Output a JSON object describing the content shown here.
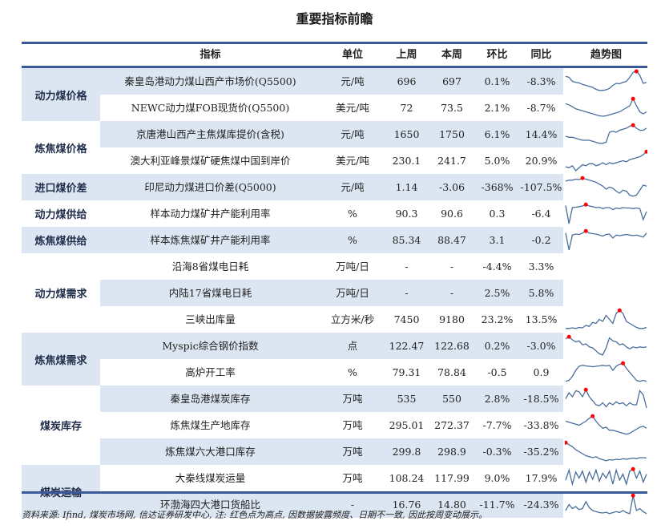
{
  "title": "重要指标前瞻",
  "colors": {
    "rule": "#3b5998",
    "shade": "#dce6f2",
    "line": "#4a6d9c",
    "peak": "#ff0000"
  },
  "headers": [
    "指标",
    "单位",
    "上周",
    "本周",
    "环比",
    "同比",
    "趋势图"
  ],
  "groups": [
    {
      "label": "动力煤价格",
      "rows": 2
    },
    {
      "label": "炼焦煤价格",
      "rows": 2
    },
    {
      "label": "进口煤价差",
      "rows": 1
    },
    {
      "label": "动力煤供给",
      "rows": 1
    },
    {
      "label": "炼焦煤供给",
      "rows": 1
    },
    {
      "label": "动力煤需求",
      "rows": 3
    },
    {
      "label": "炼焦煤需求",
      "rows": 2
    },
    {
      "label": "煤炭库存",
      "rows": 3
    },
    {
      "label": "煤炭运输",
      "rows": 2
    }
  ],
  "rows": [
    {
      "indicator": "秦皇岛港动力煤山西产市场价(Q5500)",
      "unit": "元/吨",
      "prev": "696",
      "cur": "697",
      "hb": "0.1%",
      "tb": "-8.3%",
      "trend": [
        0.75,
        0.7,
        0.5,
        0.45,
        0.42,
        0.35,
        0.3,
        0.25,
        0.2,
        0.1,
        0.05,
        0.05,
        0.08,
        0.15,
        0.3,
        0.4,
        0.38,
        0.45,
        0.5,
        0.7,
        0.95,
        1,
        0.8,
        0.4,
        0.45
      ]
    },
    {
      "indicator": "NEWC动力煤FOB现货价(Q5500)",
      "unit": "美元/吨",
      "prev": "72",
      "cur": "73.5",
      "hb": "2.1%",
      "tb": "-8.7%",
      "trend": [
        0.7,
        0.65,
        0.55,
        0.45,
        0.4,
        0.35,
        0.3,
        0.25,
        0.2,
        0.15,
        0.1,
        0.08,
        0.1,
        0.15,
        0.2,
        0.25,
        0.3,
        0.4,
        0.5,
        0.6,
        0.95,
        0.6,
        0.3,
        0.2,
        0.3
      ]
    },
    {
      "indicator": "京唐港山西产主焦煤库提价(含税)",
      "unit": "元/吨",
      "prev": "1650",
      "cur": "1750",
      "hb": "6.1%",
      "tb": "14.4%",
      "trend": [
        0.4,
        0.35,
        0.35,
        0.3,
        0.25,
        0.2,
        0.2,
        0.2,
        0.15,
        0.1,
        0.05,
        0.05,
        0.1,
        0.6,
        0.65,
        0.6,
        0.7,
        0.75,
        0.8,
        0.9,
        0.95,
        0.8,
        0.7,
        0.7,
        0.8
      ]
    },
    {
      "indicator": "澳大利亚峰景煤矿硬焦煤中国到岸价",
      "unit": "美元/吨",
      "prev": "230.1",
      "cur": "241.7",
      "hb": "5.0%",
      "tb": "20.9%",
      "trend": [
        0.2,
        0.15,
        0.25,
        0.0,
        0.15,
        0.3,
        0.25,
        0.35,
        0.35,
        0.25,
        0.3,
        0.4,
        0.3,
        0.4,
        0.35,
        0.4,
        0.45,
        0.5,
        0.45,
        0.55,
        0.6,
        0.65,
        0.7,
        0.8,
        0.95
      ]
    },
    {
      "indicator": "印尼动力煤进口价差(Q5000)",
      "unit": "元/吨",
      "prev": "1.14",
      "cur": "-3.06",
      "hb": "-368%",
      "tb": "-107.5%",
      "trend": [
        0.8,
        0.85,
        0.85,
        0.9,
        0.88,
        0.95,
        0.9,
        0.85,
        0.8,
        0.75,
        0.65,
        0.55,
        0.4,
        0.5,
        0.45,
        0.3,
        0.2,
        0.35,
        0.3,
        0.1,
        0.05,
        0.1,
        0.35,
        0.6,
        0.55
      ]
    },
    {
      "indicator": "样本动力煤矿井产能利用率",
      "unit": "%",
      "prev": "90.3",
      "cur": "90.6",
      "hb": "0.3",
      "tb": "-6.4",
      "trend": [
        0.9,
        0.0,
        0.8,
        0.82,
        0.85,
        0.88,
        0.95,
        0.88,
        0.85,
        0.8,
        0.82,
        0.75,
        0.8,
        0.8,
        0.7,
        0.78,
        0.75,
        0.8,
        0.78,
        0.78,
        0.75,
        0.78,
        0.75,
        0.2,
        0.6
      ]
    },
    {
      "indicator": "样本炼焦煤矿井产能利用率",
      "unit": "%",
      "prev": "85.34",
      "cur": "88.47",
      "hb": "3.1",
      "tb": "-0.2",
      "trend": [
        0.85,
        0.0,
        0.75,
        0.8,
        0.78,
        0.85,
        0.95,
        0.85,
        0.82,
        0.8,
        0.75,
        0.7,
        0.78,
        0.8,
        0.6,
        0.75,
        0.72,
        0.75,
        0.78,
        0.75,
        0.72,
        0.75,
        0.7,
        0.65,
        0.85
      ]
    },
    {
      "indicator": "沿海8省煤电日耗",
      "unit": "万吨/日",
      "prev": "-",
      "cur": "-",
      "hb": "-4.4%",
      "tb": "3.3%",
      "trend": []
    },
    {
      "indicator": "内陆17省煤电日耗",
      "unit": "万吨/日",
      "prev": "-",
      "cur": "-",
      "hb": "2.5%",
      "tb": "5.8%",
      "trend": []
    },
    {
      "indicator": "三峡出库量",
      "unit": "立方米/秒",
      "prev": "7450",
      "cur": "9180",
      "hb": "23.2%",
      "tb": "13.5%",
      "trend": [
        0.05,
        0.05,
        0.08,
        0.05,
        0.1,
        0.08,
        0.2,
        0.15,
        0.35,
        0.3,
        0.5,
        0.4,
        0.7,
        0.5,
        0.3,
        0.8,
        0.95,
        0.8,
        0.4,
        0.3,
        0.2,
        0.1,
        0.05,
        0.05,
        0.1
      ]
    },
    {
      "indicator": "Myspic综合钢价指数",
      "unit": "点",
      "prev": "122.47",
      "cur": "122.68",
      "hb": "0.2%",
      "tb": "-3.0%",
      "trend": [
        0.85,
        0.95,
        0.8,
        0.7,
        0.75,
        0.55,
        0.6,
        0.45,
        0.4,
        0.25,
        0.1,
        0.05,
        0.4,
        0.9,
        0.75,
        0.7,
        0.55,
        0.6,
        0.45,
        0.35,
        0.45,
        0.4,
        0.45,
        0.42,
        0.45
      ]
    },
    {
      "indicator": "高炉开工率",
      "unit": "%",
      "prev": "79.31",
      "cur": "78.84",
      "hb": "-0.5",
      "tb": "0.9",
      "trend": [
        0.05,
        0.1,
        0.3,
        0.6,
        0.8,
        0.85,
        0.82,
        0.8,
        0.78,
        0.8,
        0.82,
        0.85,
        0.82,
        0.85,
        0.6,
        0.8,
        0.9,
        0.95,
        0.7,
        0.5,
        0.3,
        0.1,
        0.05,
        0.1,
        0.05
      ]
    },
    {
      "indicator": "秦皇岛港煤炭库存",
      "unit": "万吨",
      "prev": "535",
      "cur": "550",
      "hb": "2.8%",
      "tb": "-18.5%",
      "trend": [
        0.5,
        0.8,
        0.6,
        0.9,
        0.85,
        0.6,
        0.95,
        0.6,
        0.4,
        0.2,
        0.15,
        0.3,
        0.1,
        0.3,
        0.2,
        0.35,
        0.25,
        0.3,
        0.15,
        0.3,
        0.2,
        0.2,
        0.9,
        0.7,
        0.05
      ]
    },
    {
      "indicator": "炼焦煤生产地库存",
      "unit": "万吨",
      "prev": "295.01",
      "cur": "272.37",
      "hb": "-7.7%",
      "tb": "-33.8%",
      "trend": [
        0.7,
        0.65,
        0.6,
        0.55,
        0.5,
        0.6,
        0.7,
        0.85,
        0.95,
        0.7,
        0.5,
        0.35,
        0.4,
        0.25,
        0.25,
        0.2,
        0.15,
        0.1,
        0.05,
        0.1,
        0.2,
        0.3,
        0.4,
        0.45,
        0.35
      ]
    },
    {
      "indicator": "炼焦煤六大港口库存",
      "unit": "万吨",
      "prev": "299.8",
      "cur": "298.9",
      "hb": "-0.3%",
      "tb": "-35.2%",
      "trend": [
        0.95,
        0.85,
        0.75,
        0.6,
        0.5,
        0.4,
        0.3,
        0.25,
        0.2,
        0.25,
        0.15,
        0.1,
        0.05,
        0.1,
        0.08,
        0.12,
        0.1,
        0.15,
        0.12,
        0.15,
        0.18,
        0.15,
        0.2,
        0.2,
        0.18
      ]
    },
    {
      "indicator": "大秦线煤炭运量",
      "unit": "万吨",
      "prev": "108.24",
      "cur": "117.99",
      "hb": "9.0%",
      "tb": "17.9%",
      "trend": [
        0.4,
        0.9,
        0.2,
        0.8,
        0.5,
        0.85,
        0.3,
        0.8,
        0.45,
        0.9,
        0.35,
        0.75,
        0.5,
        0.85,
        0.2,
        0.9,
        0.4,
        0.7,
        0.2,
        0.85,
        0.95,
        0.5,
        0.85,
        0.3,
        0.7
      ]
    },
    {
      "indicator": "环渤海四大港口货船比",
      "unit": "-",
      "prev": "16.76",
      "cur": "14.80",
      "hb": "-11.7%",
      "tb": "-24.3%",
      "trend": [
        0.2,
        0.5,
        0.3,
        0.4,
        0.25,
        0.3,
        0.65,
        0.35,
        0.2,
        0.15,
        0.1,
        0.08,
        0.12,
        0.05,
        0.1,
        0.15,
        0.1,
        0.2,
        0.1,
        0.05,
        0.95,
        0.2,
        0.3,
        0.15,
        0.05
      ]
    }
  ],
  "footer": "资料来源: Ifind, 煤炭市场网, 信达证券研发中心, 注: 红色点为高点, 因数据披露频度、日期不一致, 因此按周变动展示。"
}
